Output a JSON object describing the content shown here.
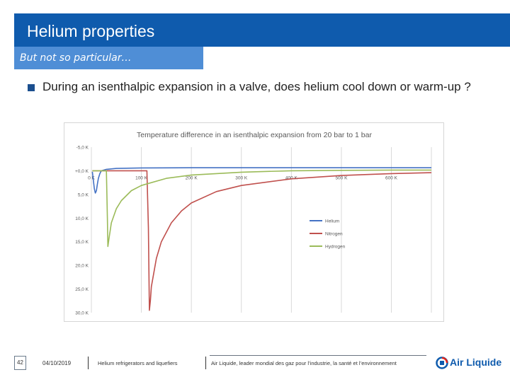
{
  "header": {
    "title": "Helium properties"
  },
  "subtitle": "But not so particular…",
  "bullet": "During an isenthalpic expansion in a valve, does helium cool down or warm-up ?",
  "chart_data": {
    "type": "line",
    "title": "Temperature difference in an isenthalpic expansion from 20 bar to 1 bar",
    "x_tick_labels": [
      "0 K",
      "100 K",
      "200 K",
      "300 K",
      "400 K",
      "500 K",
      "600 K"
    ],
    "y_tick_labels": [
      "-5,0 K",
      "+0,0 K",
      "5,0 K",
      "10,0 K",
      "15,0 K",
      "20,0 K",
      "25,0 K",
      "30,0 K"
    ],
    "xlim": [
      0,
      680
    ],
    "ylim_top_to_bottom": [
      -5,
      30
    ],
    "grid": "vertical",
    "legend_placement": "right",
    "series": [
      {
        "name": "Helium",
        "color": "#4472c4",
        "x": [
          2,
          4,
          6,
          8,
          10,
          12,
          14,
          17,
          20,
          30,
          50,
          100,
          200,
          300,
          400,
          500,
          600,
          680
        ],
        "y": [
          0.2,
          2.0,
          3.8,
          4.7,
          4.2,
          2.8,
          1.6,
          0.6,
          0.0,
          -0.3,
          -0.5,
          -0.6,
          -0.65,
          -0.65,
          -0.65,
          -0.65,
          -0.65,
          -0.65
        ]
      },
      {
        "name": "Nitrogen",
        "color": "#c0504d",
        "x": [
          2,
          60,
          100,
          105,
          111,
          114,
          116,
          118,
          120,
          130,
          140,
          160,
          180,
          200,
          250,
          300,
          400,
          500,
          600,
          680
        ],
        "y": [
          0,
          0,
          0,
          0,
          0,
          12.0,
          29.5,
          27.5,
          24.5,
          18.5,
          15.0,
          11.0,
          8.5,
          6.8,
          4.4,
          3.1,
          1.7,
          1.0,
          0.6,
          0.4
        ]
      },
      {
        "name": "Hydrogen",
        "color": "#9bbb59",
        "x": [
          2,
          20,
          25,
          28,
          30,
          32,
          33,
          35,
          40,
          50,
          60,
          80,
          100,
          150,
          200,
          300,
          400,
          500,
          600,
          680
        ],
        "y": [
          0,
          0,
          0,
          0,
          0,
          10.0,
          16.0,
          14.5,
          11.0,
          8.0,
          6.3,
          4.2,
          3.1,
          1.6,
          0.9,
          0.3,
          0.0,
          -0.1,
          -0.15,
          -0.15
        ]
      }
    ]
  },
  "footer": {
    "page_number": "42",
    "date": "04/10/2019",
    "topic": "Helium refrigerators and liquefiers",
    "tagline": "Air Liquide, leader mondial des gaz pour l’industrie, la santé et l’environnement",
    "logo_text": "Air Liquide"
  },
  "colors": {
    "header": "#0f5bad",
    "subtitle": "#4f8ed6",
    "bullet": "#1b4f8f"
  }
}
